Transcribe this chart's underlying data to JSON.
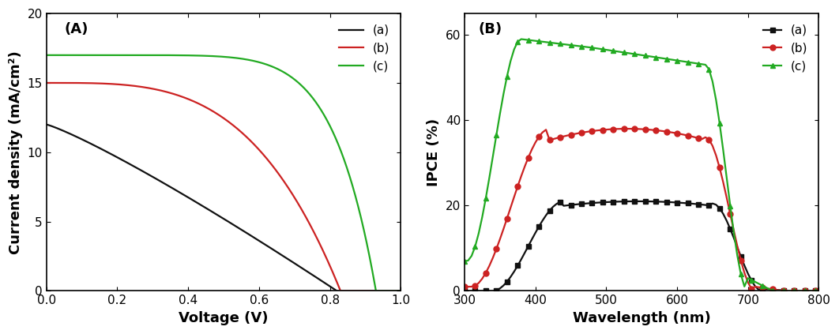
{
  "panel_A": {
    "title": "(A)",
    "xlabel": "Voltage (V)",
    "ylabel": "Current density (mA/cm²)",
    "xlim": [
      0.0,
      1.0
    ],
    "ylim": [
      0,
      20
    ],
    "xticks": [
      0.0,
      0.2,
      0.4,
      0.6,
      0.8,
      1.0
    ],
    "yticks": [
      0,
      5,
      10,
      15,
      20
    ],
    "curves": {
      "a": {
        "color": "#111111",
        "label": "(a)"
      },
      "b": {
        "color": "#cc2222",
        "label": "(b)"
      },
      "c": {
        "color": "#22aa22",
        "label": "(c)"
      }
    }
  },
  "panel_B": {
    "title": "(B)",
    "xlabel": "Wavelength (nm)",
    "ylabel": "IPCE (%)",
    "xlim": [
      300,
      800
    ],
    "ylim": [
      0,
      65
    ],
    "xticks": [
      300,
      400,
      500,
      600,
      700,
      800
    ],
    "yticks": [
      0,
      20,
      40,
      60
    ],
    "curves": {
      "a": {
        "color": "#111111",
        "label": "(a)",
        "marker": "s"
      },
      "b": {
        "color": "#cc2222",
        "label": "(b)",
        "marker": "o"
      },
      "c": {
        "color": "#22aa22",
        "label": "(c)",
        "marker": "^"
      }
    }
  },
  "figure": {
    "bgcolor": "#ffffff",
    "linewidth": 1.6,
    "fontsize_label": 13,
    "fontsize_tick": 11,
    "fontsize_legend": 11,
    "fontsize_title": 13
  }
}
